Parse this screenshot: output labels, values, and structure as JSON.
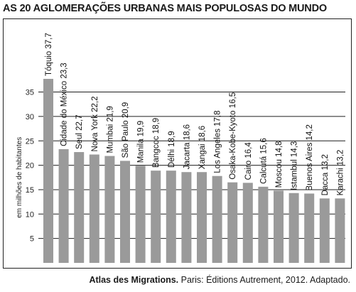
{
  "chart_data": {
    "type": "bar",
    "title": "AS 20 AGLOMERAÇÕES URBANAS MAIS POPULOSAS DO MUNDO",
    "ylabel": "em milhões de habitantes",
    "xlabel": "",
    "ylim": [
      0,
      40
    ],
    "yticks": [
      5,
      10,
      15,
      20,
      25,
      30,
      35
    ],
    "grid": true,
    "bar_color": "#9a9a9a",
    "categories": [
      "Tóquio",
      "Cidade do México",
      "Seul",
      "Nova York",
      "Mumbai",
      "São Paulo",
      "Manila",
      "Bangcoc",
      "Délhi",
      "Jacarta",
      "Xangai",
      "Los Angeles",
      "Osaka-Kobe-Kyoto",
      "Cairo",
      "Calcutá",
      "Moscou",
      "Istambul",
      "Buenos Aires",
      "Dacca",
      "Karachi"
    ],
    "values": [
      37.7,
      23.3,
      22.7,
      22.2,
      21.9,
      20.9,
      19.9,
      18.9,
      18.9,
      18.6,
      18.6,
      17.8,
      16.5,
      16.4,
      15.6,
      14.8,
      14.3,
      14.2,
      13.2,
      13.2
    ],
    "bar_labels": [
      "Tóquio 37,7",
      "Cidade do México 23,3",
      "Seul 22,7",
      "Nova York 22,2",
      "Mumbai 21,9",
      "São Paulo 20,9",
      "Manila 19,9",
      "Bangcoc 18,9",
      "Délhi 18,9",
      "Jacarta 18,6",
      "Xangai 18,6",
      "Los Angeles 17,8",
      "Osaka-Kobe-Kyoto 16,5",
      "Cairo 16,4",
      "Calcutá 15,6",
      "Moscou 14,8",
      "Istambul 14,3",
      "Buenos Aires 14,2",
      "Dacca 13,2",
      "Karachi 13,2"
    ]
  },
  "source": {
    "work": "Atlas des Migrations.",
    "rest": " Paris: Éditions Autrement, 2012. Adaptado."
  }
}
